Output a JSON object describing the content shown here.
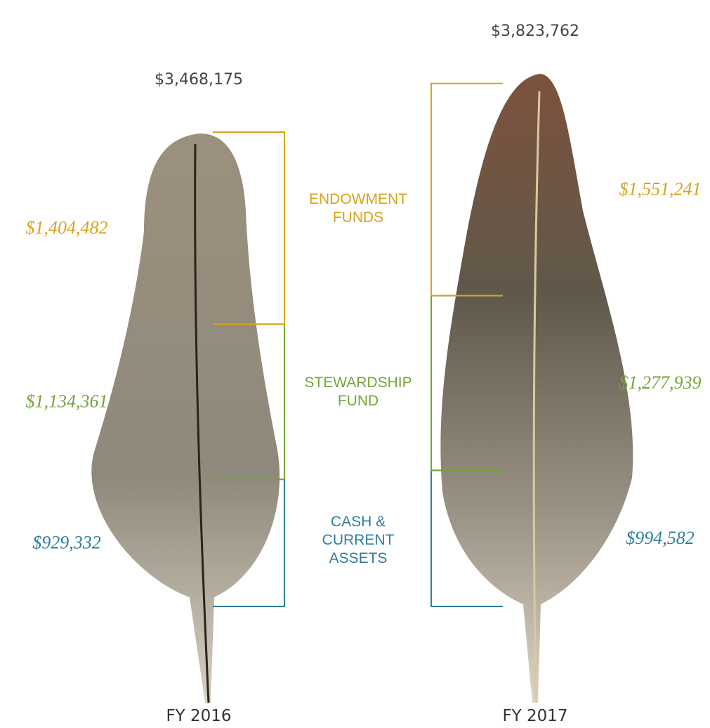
{
  "chart_data": {
    "type": "bar",
    "stacked": true,
    "categories": [
      "FY 2016",
      "FY 2017"
    ],
    "series": [
      {
        "name": "ENDOWMENT FUNDS",
        "color": "#d9a21b",
        "values": [
          1404482,
          1551241
        ],
        "value_labels": [
          "$1,404,482",
          "$1,551,241"
        ]
      },
      {
        "name": "STEWARDSHIP FUND",
        "color": "#74a33b",
        "values": [
          1134361,
          1277939
        ],
        "value_labels": [
          "$1,134,361",
          "$1,277,939"
        ]
      },
      {
        "name": "CASH & CURRENT ASSETS",
        "color": "#2f7d9b",
        "values": [
          929332,
          994582
        ],
        "value_labels": [
          "$929,332",
          "$994,582"
        ]
      }
    ],
    "totals": {
      "values": [
        3468175,
        3823762
      ],
      "value_labels": [
        "$3,468,175",
        "$3,823,762"
      ]
    }
  }
}
